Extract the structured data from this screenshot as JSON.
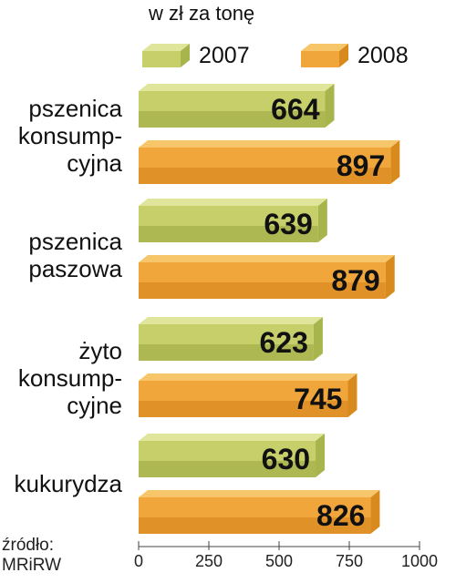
{
  "unit_label": "w zł za tonę",
  "source": [
    "źródło:",
    "MRiRW"
  ],
  "colors": {
    "2007": {
      "front": "#c6cf6a",
      "top": "#dfe59a",
      "side": "#a8b44c",
      "shade": "#9aa640"
    },
    "2008": {
      "front": "#f0a63a",
      "top": "#f8c66a",
      "side": "#d98a1c",
      "shade": "#d3801a"
    }
  },
  "chart_data": {
    "type": "bar",
    "orientation": "horizontal",
    "title": "w zł za tonę",
    "categories": [
      [
        "pszenica",
        "konsump-",
        "cyjna"
      ],
      [
        "pszenica",
        "paszowa"
      ],
      [
        "żyto",
        "konsump-",
        "cyjne"
      ],
      [
        "kukurydza"
      ]
    ],
    "series": [
      {
        "name": "2007",
        "values": [
          664,
          639,
          623,
          630
        ]
      },
      {
        "name": "2008",
        "values": [
          897,
          879,
          745,
          826
        ]
      }
    ],
    "xlim": [
      0,
      1000
    ],
    "ticks": [
      0,
      250,
      500,
      750,
      1000
    ],
    "legend": "top",
    "grid": false
  }
}
